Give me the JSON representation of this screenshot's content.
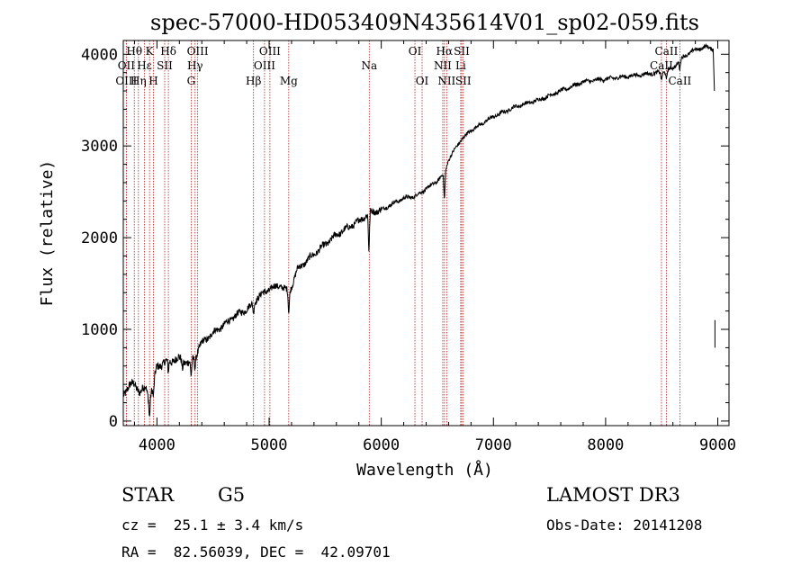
{
  "chart_data": {
    "type": "line",
    "title": "spec-57000-HD053409N435614V01_sp02-059.fits",
    "xlabel": "Wavelength (Å)",
    "ylabel": "Flux (relative)",
    "xlim": [
      3700,
      9100
    ],
    "ylim": [
      -50,
      4150
    ],
    "x_ticks": [
      4000,
      5000,
      6000,
      7000,
      8000,
      9000
    ],
    "x_tick_labels": [
      "4000",
      "5000",
      "6000",
      "7000",
      "8000",
      "9000"
    ],
    "y_ticks": [
      0,
      1000,
      2000,
      3000,
      4000
    ],
    "y_tick_labels": [
      "0",
      "1000",
      "2000",
      "3000",
      "4000"
    ],
    "series": [
      {
        "name": "flux",
        "color": "#000000",
        "anchors": [
          [
            3700,
            300
          ],
          [
            3760,
            380
          ],
          [
            3800,
            420
          ],
          [
            3850,
            300
          ],
          [
            3900,
            380
          ],
          [
            3930,
            250
          ],
          [
            3960,
            350
          ],
          [
            4000,
            600
          ],
          [
            4100,
            650
          ],
          [
            4200,
            680
          ],
          [
            4300,
            620
          ],
          [
            4400,
            850
          ],
          [
            4500,
            960
          ],
          [
            4600,
            1050
          ],
          [
            4700,
            1150
          ],
          [
            4800,
            1220
          ],
          [
            4860,
            1280
          ],
          [
            4900,
            1350
          ],
          [
            5000,
            1440
          ],
          [
            5100,
            1480
          ],
          [
            5180,
            1400
          ],
          [
            5250,
            1650
          ],
          [
            5400,
            1820
          ],
          [
            5600,
            2030
          ],
          [
            5800,
            2180
          ],
          [
            5900,
            2280
          ],
          [
            6000,
            2300
          ],
          [
            6100,
            2370
          ],
          [
            6200,
            2430
          ],
          [
            6300,
            2450
          ],
          [
            6400,
            2530
          ],
          [
            6500,
            2620
          ],
          [
            6563,
            2700
          ],
          [
            6600,
            2850
          ],
          [
            6700,
            3050
          ],
          [
            6800,
            3170
          ],
          [
            7000,
            3320
          ],
          [
            7200,
            3430
          ],
          [
            7400,
            3500
          ],
          [
            7600,
            3600
          ],
          [
            7800,
            3700
          ],
          [
            8000,
            3730
          ],
          [
            8200,
            3760
          ],
          [
            8400,
            3790
          ],
          [
            8500,
            3800
          ],
          [
            8600,
            3850
          ],
          [
            8700,
            3980
          ],
          [
            8800,
            4050
          ],
          [
            8900,
            4080
          ],
          [
            8960,
            4060
          ]
        ],
        "dips": [
          [
            3934,
            -200
          ],
          [
            3969,
            -150
          ],
          [
            4101,
            -120
          ],
          [
            4227,
            -80
          ],
          [
            4305,
            -150
          ],
          [
            4340,
            -120
          ],
          [
            4861,
            -100
          ],
          [
            5175,
            -220
          ],
          [
            5890,
            -420
          ],
          [
            6563,
            -280
          ],
          [
            8498,
            -80
          ],
          [
            8542,
            -100
          ],
          [
            8662,
            -100
          ]
        ]
      }
    ],
    "spectral_lines": [
      {
        "label": "Hθ",
        "wavelength": 3798,
        "row": 1
      },
      {
        "label": "OII",
        "wavelength": 3727,
        "row": 2
      },
      {
        "label": "OIII",
        "wavelength": 3727,
        "row": 3
      },
      {
        "label": "K",
        "wavelength": 3934,
        "row": 1
      },
      {
        "label": "Hε",
        "wavelength": 3889,
        "row": 2
      },
      {
        "label": "Hη",
        "wavelength": 3835,
        "row": 3
      },
      {
        "label": "Hδ",
        "wavelength": 4102,
        "row": 1
      },
      {
        "label": "SII",
        "wavelength": 4069,
        "row": 2
      },
      {
        "label": "H",
        "wavelength": 3969,
        "row": 3
      },
      {
        "label": "OIII",
        "wavelength": 4363,
        "row": 1
      },
      {
        "label": "Hγ",
        "wavelength": 4340,
        "row": 2
      },
      {
        "label": "G",
        "wavelength": 4305,
        "row": 3
      },
      {
        "label": "Hβ",
        "wavelength": 4861,
        "row": 3
      },
      {
        "label": "OIII",
        "wavelength": 5007,
        "row": 1
      },
      {
        "label": "OIII",
        "wavelength": 4959,
        "row": 2
      },
      {
        "label": "Mg",
        "wavelength": 5175,
        "row": 3
      },
      {
        "label": "Na",
        "wavelength": 5893,
        "row": 2
      },
      {
        "label": "OI",
        "wavelength": 6300,
        "row": 1
      },
      {
        "label": "OI",
        "wavelength": 6364,
        "row": 3
      },
      {
        "label": "Hα",
        "wavelength": 6563,
        "row": 1
      },
      {
        "label": "NII",
        "wavelength": 6548,
        "row": 2
      },
      {
        "label": "NII",
        "wavelength": 6583,
        "row": 3
      },
      {
        "label": "SII",
        "wavelength": 6717,
        "row": 1
      },
      {
        "label": "Li",
        "wavelength": 6708,
        "row": 2
      },
      {
        "label": "SII",
        "wavelength": 6731,
        "row": 3
      },
      {
        "label": "CaII",
        "wavelength": 8542,
        "row": 1
      },
      {
        "label": "CaII",
        "wavelength": 8498,
        "row": 2
      },
      {
        "label": "CaII",
        "wavelength": 8662,
        "row": 3
      }
    ]
  },
  "info": {
    "class_label": "STAR",
    "subclass": "G5",
    "survey": "LAMOST DR3",
    "redshift": "cz =  25.1 ± 3.4 km/s",
    "obs_date": "Obs-Date: 20141208",
    "coords": "RA =  82.56039, DEC =  42.09701"
  },
  "colors": {
    "line_marker": "#b22222",
    "spectrum": "#000000"
  }
}
